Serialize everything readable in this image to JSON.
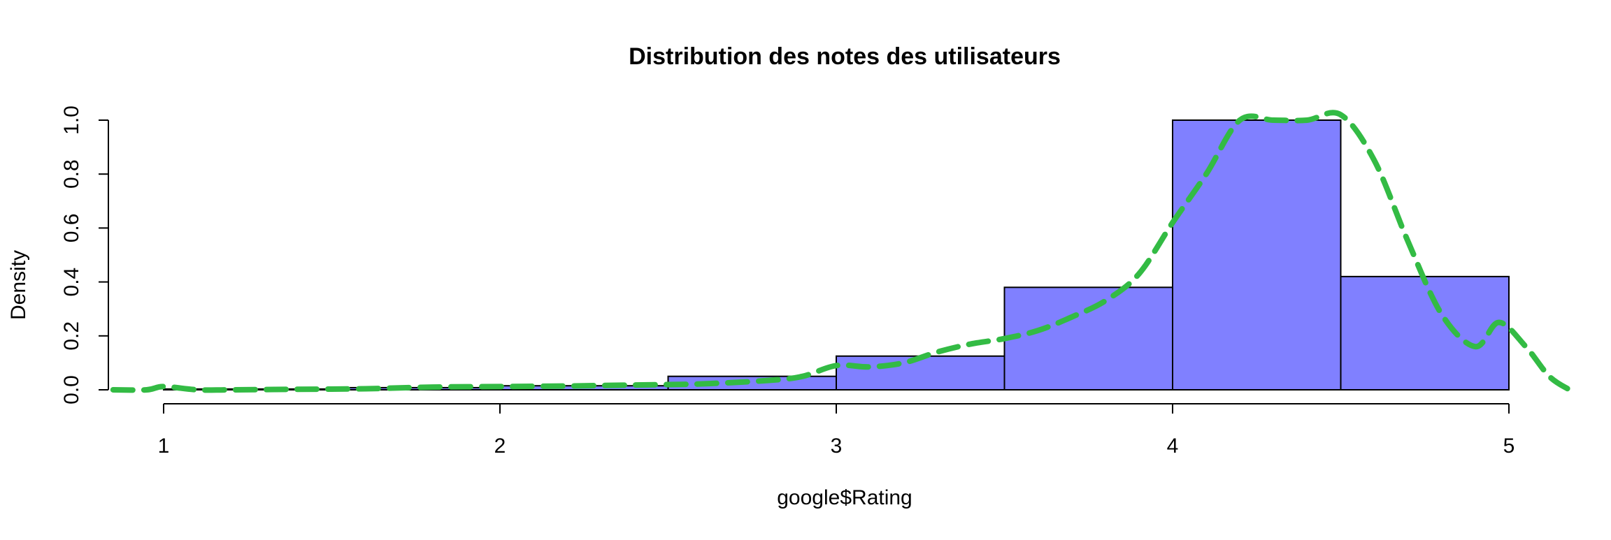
{
  "chart_data": {
    "type": "bar",
    "title": "Distribution des notes des utilisateurs",
    "xlabel": "google$Rating",
    "ylabel": "Density",
    "xlim": [
      1,
      5
    ],
    "ylim": [
      0,
      1.0
    ],
    "x_ticks": [
      "1",
      "2",
      "3",
      "4",
      "5"
    ],
    "y_ticks": [
      "0.0",
      "0.2",
      "0.4",
      "0.6",
      "0.8",
      "1.0"
    ],
    "bins": [
      {
        "from": 1.0,
        "to": 1.5,
        "density": 0.003
      },
      {
        "from": 1.5,
        "to": 2.0,
        "density": 0.008
      },
      {
        "from": 2.0,
        "to": 2.5,
        "density": 0.015
      },
      {
        "from": 2.5,
        "to": 3.0,
        "density": 0.05
      },
      {
        "from": 3.0,
        "to": 3.5,
        "density": 0.125
      },
      {
        "from": 3.5,
        "to": 4.0,
        "density": 0.38
      },
      {
        "from": 4.0,
        "to": 4.5,
        "density": 1.0
      },
      {
        "from": 4.5,
        "to": 5.0,
        "density": 0.42
      }
    ],
    "density_curve": {
      "x": [
        0.85,
        0.95,
        1.0,
        1.1,
        1.2,
        1.4,
        1.6,
        1.8,
        2.0,
        2.2,
        2.4,
        2.6,
        2.8,
        2.9,
        3.0,
        3.1,
        3.2,
        3.3,
        3.4,
        3.5,
        3.6,
        3.7,
        3.8,
        3.9,
        4.0,
        4.1,
        4.2,
        4.3,
        4.4,
        4.5,
        4.6,
        4.7,
        4.8,
        4.9,
        4.97,
        5.05,
        5.12,
        5.18
      ],
      "y": [
        0.0,
        0.0,
        0.012,
        0.0,
        0.0,
        0.002,
        0.004,
        0.01,
        0.012,
        0.014,
        0.018,
        0.022,
        0.035,
        0.05,
        0.09,
        0.085,
        0.1,
        0.14,
        0.17,
        0.19,
        0.22,
        0.27,
        0.33,
        0.43,
        0.62,
        0.8,
        1.0,
        1.0,
        1.0,
        1.02,
        0.85,
        0.55,
        0.28,
        0.16,
        0.25,
        0.16,
        0.05,
        0.0
      ]
    },
    "colors": {
      "bar_fill": "#8080ff",
      "bar_stroke": "#000000",
      "curve": "#33bb44"
    },
    "curve_style": "dashed",
    "grid": false,
    "legend": "none"
  }
}
